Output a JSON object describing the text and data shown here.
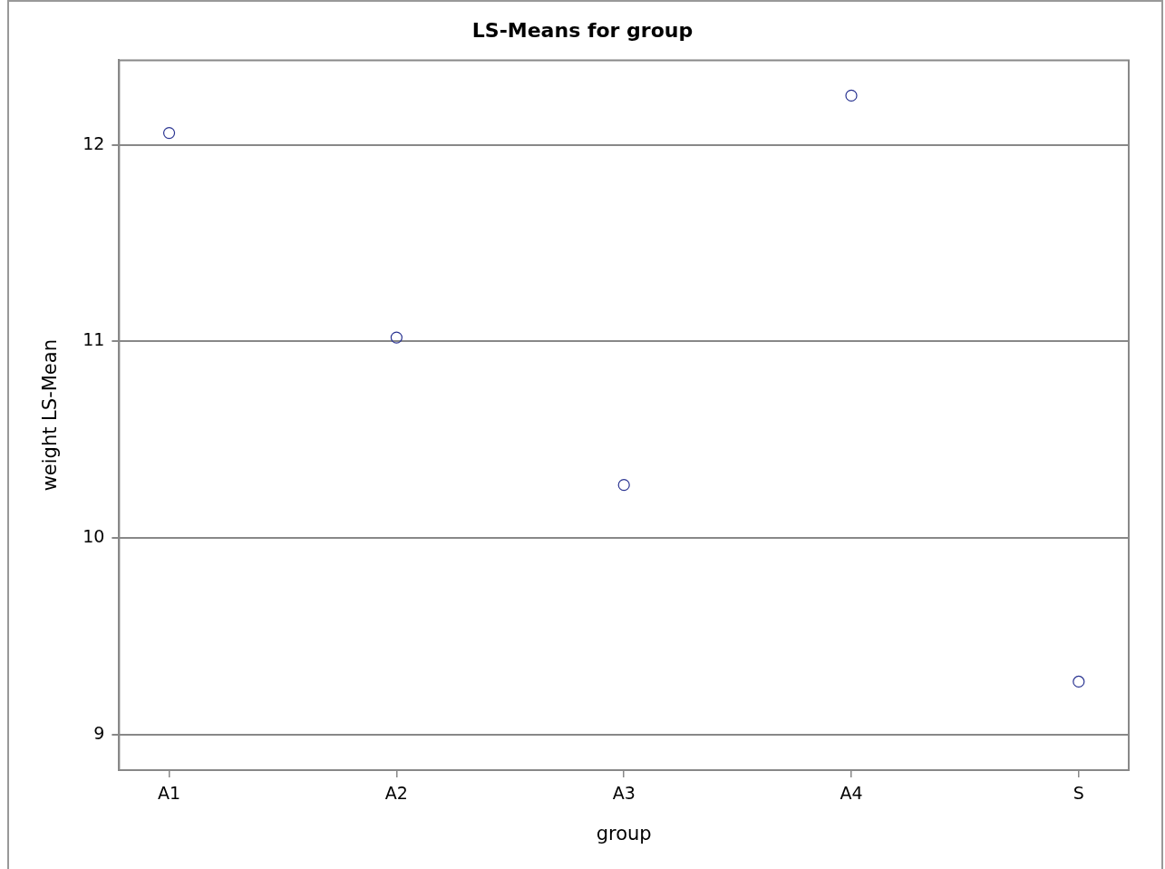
{
  "chart_data": {
    "type": "scatter",
    "title": "LS-Means for group",
    "xlabel": "group",
    "ylabel": "weight LS-Mean",
    "categories": [
      "A1",
      "A2",
      "A3",
      "A4",
      "S"
    ],
    "series": [
      {
        "color": "#2b3592",
        "values": [
          12.06,
          11.02,
          10.27,
          12.25,
          9.27
        ]
      }
    ],
    "ylim": [
      8.82,
      12.43
    ],
    "yticks": [
      9,
      10,
      11,
      12
    ],
    "grid": "y",
    "legend": false,
    "marker": "circle"
  }
}
